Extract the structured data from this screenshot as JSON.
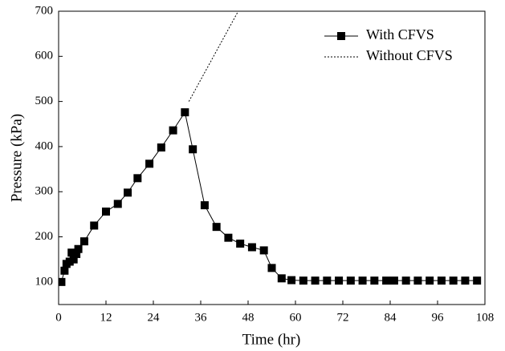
{
  "chart_data": {
    "type": "line",
    "xlabel": "Time (hr)",
    "ylabel": "Pressure (kPa)",
    "xlim": [
      0,
      108
    ],
    "xticks": [
      0,
      12,
      24,
      36,
      48,
      60,
      72,
      84,
      96,
      108
    ],
    "ylim": [
      50,
      700
    ],
    "yticks": [
      100,
      200,
      300,
      400,
      500,
      600,
      700
    ],
    "legend": "upper right",
    "series": [
      {
        "name": "With CFVS",
        "color": "#000000",
        "marker": "square",
        "dash": "solid",
        "x": [
          0.7,
          1.5,
          2,
          2.8,
          3.3,
          3.8,
          4.5,
          5,
          6.5,
          9,
          12,
          15,
          17.5,
          20,
          23,
          26,
          29,
          32,
          34,
          37,
          40,
          43,
          46,
          49,
          52,
          54,
          56.5,
          59,
          62,
          65,
          68,
          71,
          74,
          77,
          80,
          83,
          85,
          88,
          91,
          94,
          97,
          100,
          103,
          106
        ],
        "values": [
          100,
          125,
          140,
          145,
          165,
          150,
          162,
          173,
          190,
          225,
          256,
          273,
          298,
          330,
          362,
          398,
          436,
          476,
          394,
          270,
          222,
          198,
          185,
          177,
          170,
          131,
          108,
          104,
          103,
          103,
          103,
          103,
          103,
          103,
          103,
          103,
          103,
          103,
          103,
          103,
          103,
          103,
          103,
          103
        ]
      },
      {
        "name": "Without CFVS",
        "color": "#000000",
        "marker": "none",
        "dash": "dotted",
        "x": [
          33,
          45.5
        ],
        "values": [
          500,
          700
        ]
      }
    ]
  }
}
